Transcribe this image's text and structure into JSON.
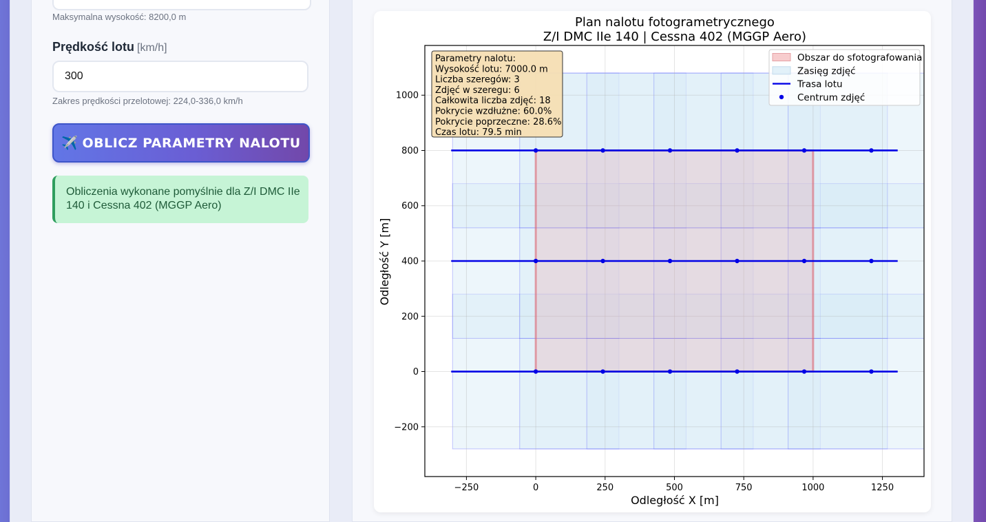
{
  "form": {
    "max_altitude_hint": "Maksymalna wysokość: 8200,0 m",
    "speed_label": "Prędkość lotu",
    "speed_unit": "[km/h]",
    "speed_value": "300",
    "speed_hint": "Zakres prędkości przelotowej: 224,0-336,0 km/h",
    "calc_button_icon": "✈️",
    "calc_button_label": "OBLICZ PARAMETRY NALOTU",
    "success_message": "Obliczenia wykonane pomyślnie dla Z/I DMC IIe 140 i Cessna 402 (MGGP Aero)"
  },
  "chart_data": {
    "type": "scatter",
    "title": "Plan nalotu fotogrametrycznego",
    "subtitle": "Z/I DMC IIe 140 | Cessna 402 (MGGP Aero)",
    "xlabel": "Odległość X [m]",
    "ylabel": "Odległość Y [m]",
    "xlim": [
      -400,
      1400
    ],
    "ylim": [
      -380,
      1180
    ],
    "xticks": [
      -250,
      0,
      250,
      500,
      750,
      1000,
      1250
    ],
    "yticks": [
      -200,
      0,
      200,
      400,
      600,
      800,
      1000
    ],
    "xtick_labels": [
      "−250",
      "0",
      "250",
      "500",
      "750",
      "1000",
      "1250"
    ],
    "ytick_labels": [
      "−200",
      "0",
      "200",
      "400",
      "600",
      "800",
      "1000"
    ],
    "grid": true,
    "legend_position": "top-right",
    "legend": [
      {
        "label": "Obszar do sfotografowania",
        "kind": "patch",
        "color": "#f4b6b8"
      },
      {
        "label": "Zasięg zdjęć",
        "kind": "patch",
        "color": "#d6ebf6"
      },
      {
        "label": "Trasa lotu",
        "kind": "line",
        "color": "#0000e6"
      },
      {
        "label": "Centrum zdjęć",
        "kind": "marker",
        "color": "#0000e6"
      }
    ],
    "target_area": {
      "x0": 0,
      "x1": 1000,
      "y0": 0,
      "y1": 800,
      "color": "#e8a3a8"
    },
    "photo_footprint": {
      "width": 600,
      "height": 560
    },
    "strips": [
      {
        "y": 0,
        "x_start": -305,
        "x_end": 1305
      },
      {
        "y": 400,
        "x_start": -305,
        "x_end": 1305
      },
      {
        "y": 800,
        "x_start": -305,
        "x_end": 1305
      }
    ],
    "photo_centers_x": [
      0,
      242,
      484,
      726,
      968,
      1210
    ],
    "info_box": [
      "Parametry nalotu:",
      "Wysokość lotu: 7000.0 m",
      "Liczba szeregów: 3",
      "Zdjęć w szeregu: 6",
      "Całkowita liczba zdjęć: 18",
      "Pokrycie wzdłużne: 60.0%",
      "Pokrycie poprzeczne: 28.6%",
      "Czas lotu: 79.5 min"
    ]
  }
}
